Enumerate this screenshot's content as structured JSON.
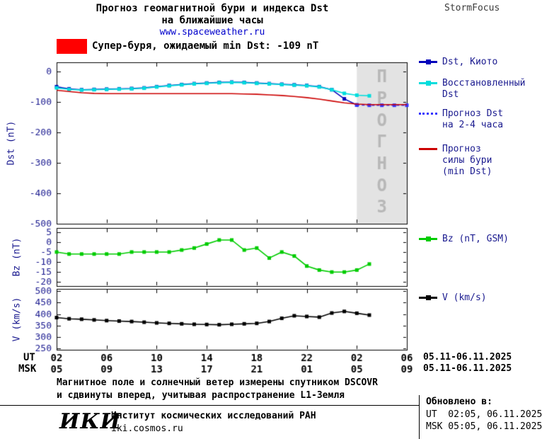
{
  "header": {
    "title_line1": "Прогноз геомагнитной бури и индекса Dst",
    "title_line2": "на ближайшие часы",
    "url": "www.spaceweather.ru",
    "brand": "StormFocus"
  },
  "alert": {
    "color": "#ff0000",
    "label": "Супер-буря, ожидаемый min Dst: -109 nT"
  },
  "legend": {
    "dst_kyoto": [
      "Dst, Киото"
    ],
    "restored": [
      "Восстановленный",
      "Dst"
    ],
    "forecast": [
      "Прогноз Dst",
      "на 2-4 часа"
    ],
    "storm": [
      "Прогноз",
      "силы бури",
      "(min Dst)"
    ],
    "bz": [
      "Bz (nT, GSM)"
    ],
    "v": [
      "V (km/s)"
    ]
  },
  "xaxis": {
    "ut_label": "UT",
    "msk_label": "MSK",
    "ut_ticks": [
      "02",
      "06",
      "10",
      "14",
      "18",
      "22",
      "02",
      "06"
    ],
    "msk_ticks": [
      "05",
      "09",
      "13",
      "17",
      "21",
      "01",
      "05",
      "09"
    ],
    "ut_range": "05.11-06.11.2025",
    "msk_range": "05.11-06.11.2025"
  },
  "footnote": {
    "line1": "Магнитное поле и солнечный ветер измерены спутником DSCOVR",
    "line2": "и сдвинуты вперед, учитывая распространение L1-Земля"
  },
  "footer": {
    "logo": "ИКИ",
    "institute": "Институт космических исследований РАН",
    "site": "iki.cosmos.ru",
    "updated_caption": "Обновлено в:",
    "updated_ut": "UT  02:05, 06.11.2025",
    "updated_msk": "MSK 05:05, 06.11.2025"
  },
  "chart_data": [
    {
      "type": "line",
      "ylabel": "Dst (nT)",
      "xlim": [
        2,
        30
      ],
      "ylim": [
        -500,
        30
      ],
      "yticks": [
        0,
        -100,
        -200,
        -300,
        -400,
        -500
      ],
      "xticks": [
        2,
        6,
        10,
        14,
        18,
        22,
        26,
        30
      ],
      "forecast_region": {
        "x_start": 26,
        "x_end": 30,
        "label": "ПРОГНОЗ"
      },
      "series": [
        {
          "name": "Dst, Киото",
          "color": "#0000bb",
          "marker": true,
          "x": [
            2,
            3,
            4,
            5,
            6,
            7,
            8,
            9,
            10,
            11,
            12,
            13,
            14,
            15,
            16,
            17,
            18,
            19,
            20,
            21,
            22,
            23,
            24,
            25,
            26
          ],
          "values": [
            -50,
            -57,
            -60,
            -59,
            -58,
            -57,
            -56,
            -54,
            -50,
            -46,
            -43,
            -40,
            -38,
            -36,
            -35,
            -36,
            -38,
            -40,
            -42,
            -44,
            -46,
            -50,
            -60,
            -90,
            -110
          ]
        },
        {
          "name": "Восстановленный Dst",
          "color": "#00dddd",
          "marker": true,
          "x": [
            2,
            3,
            4,
            5,
            6,
            7,
            8,
            9,
            10,
            11,
            12,
            13,
            14,
            15,
            16,
            17,
            18,
            19,
            20,
            21,
            22,
            23,
            24,
            25,
            26,
            27
          ],
          "values": [
            -54,
            -59,
            -61,
            -60,
            -59,
            -58,
            -57,
            -55,
            -51,
            -47,
            -44,
            -41,
            -39,
            -37,
            -36,
            -37,
            -39,
            -41,
            -43,
            -45,
            -47,
            -51,
            -60,
            -72,
            -78,
            -80
          ]
        },
        {
          "name": "Прогноз Dst на 2-4 часа",
          "color": "#3333ff",
          "marker": true,
          "dashed": true,
          "x": [
            26,
            27,
            28,
            29,
            30
          ],
          "values": [
            -110,
            -111,
            -111,
            -111,
            -111
          ]
        },
        {
          "name": "Прогноз силы бури (min Dst)",
          "color": "#cc0000",
          "marker": false,
          "x": [
            2,
            3,
            4,
            5,
            6,
            7,
            8,
            9,
            10,
            11,
            12,
            13,
            14,
            15,
            16,
            17,
            18,
            19,
            20,
            21,
            22,
            23,
            24,
            25,
            26,
            27,
            28,
            29,
            30
          ],
          "values": [
            -62,
            -66,
            -70,
            -72,
            -73,
            -73,
            -73,
            -73,
            -73,
            -73,
            -73,
            -73,
            -73,
            -73,
            -73,
            -74,
            -75,
            -77,
            -79,
            -82,
            -86,
            -91,
            -97,
            -103,
            -107,
            -109,
            -109,
            -109,
            -109
          ]
        }
      ]
    },
    {
      "type": "line",
      "ylabel": "Bz (nT)",
      "xlim": [
        2,
        30
      ],
      "ylim": [
        -22,
        7
      ],
      "yticks": [
        5,
        0,
        -5,
        -10,
        -15,
        -20
      ],
      "xticks": [
        2,
        6,
        10,
        14,
        18,
        22,
        26,
        30
      ],
      "series": [
        {
          "name": "Bz (nT, GSM)",
          "color": "#00cc00",
          "marker": true,
          "x": [
            2,
            3,
            4,
            5,
            6,
            7,
            8,
            9,
            10,
            11,
            12,
            13,
            14,
            15,
            16,
            17,
            18,
            19,
            20,
            21,
            22,
            23,
            24,
            25,
            26,
            27
          ],
          "values": [
            -5,
            -6,
            -6,
            -6,
            -6,
            -6,
            -5,
            -5,
            -5,
            -5,
            -4,
            -3,
            -1,
            1,
            1,
            -4,
            -3,
            -8,
            -5,
            -7,
            -12,
            -14,
            -15,
            -15,
            -14,
            -11
          ]
        }
      ]
    },
    {
      "type": "line",
      "ylabel": "V (km/s)",
      "xlim": [
        2,
        30
      ],
      "ylim": [
        245,
        510
      ],
      "yticks": [
        500,
        450,
        400,
        350,
        300,
        250
      ],
      "xticks": [
        2,
        6,
        10,
        14,
        18,
        22,
        26,
        30
      ],
      "series": [
        {
          "name": "V (km/s)",
          "color": "#000000",
          "marker": true,
          "x": [
            2,
            3,
            4,
            5,
            6,
            7,
            8,
            9,
            10,
            11,
            12,
            13,
            14,
            15,
            16,
            17,
            18,
            19,
            20,
            21,
            22,
            23,
            24,
            25,
            26,
            27
          ],
          "values": [
            385,
            380,
            378,
            375,
            372,
            370,
            368,
            365,
            362,
            360,
            358,
            356,
            355,
            354,
            356,
            358,
            360,
            368,
            382,
            393,
            390,
            387,
            405,
            412,
            404,
            396
          ]
        }
      ]
    }
  ]
}
